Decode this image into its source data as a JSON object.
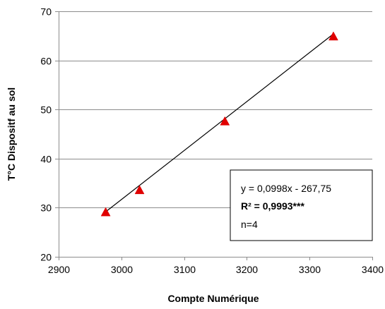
{
  "chart_data": {
    "type": "scatter",
    "title": "",
    "xlabel": "Compte Numérique",
    "ylabel": "T°C Dispositf  au sol",
    "xlim": [
      2900,
      3400
    ],
    "ylim": [
      20,
      70
    ],
    "xticks": [
      2900,
      3000,
      3100,
      3200,
      3300,
      3400
    ],
    "yticks": [
      20,
      30,
      40,
      50,
      60,
      70
    ],
    "grid": "horizontal",
    "marker": "triangle",
    "colors": {
      "marker": "#e00000",
      "trendline": "#000000",
      "grid": "#8c8c8c"
    },
    "series": [
      {
        "points": [
          {
            "x": 2975,
            "y": 29.0
          },
          {
            "x": 3029,
            "y": 33.5
          },
          {
            "x": 3165,
            "y": 47.5
          },
          {
            "x": 3338,
            "y": 64.8
          }
        ]
      }
    ],
    "trendline": {
      "slope": 0.0998,
      "intercept": -267.75,
      "x_range": [
        2975,
        3338
      ]
    },
    "annotation": {
      "equation": "y = 0,0998x  - 267,75",
      "r2": "R² = 0,9993***",
      "n": "n=4"
    }
  }
}
